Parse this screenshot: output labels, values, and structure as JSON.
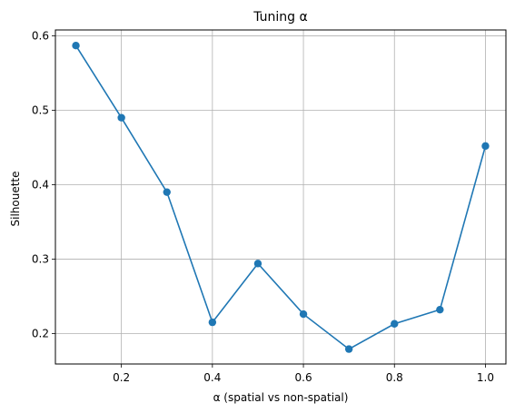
{
  "chart_data": {
    "type": "line",
    "title": "Tuning α",
    "xlabel": "α (spatial vs non-spatial)",
    "ylabel": "Silhouette",
    "x": [
      0.1,
      0.2,
      0.3,
      0.4,
      0.5,
      0.6,
      0.7,
      0.8,
      0.9,
      1.0
    ],
    "series": [
      {
        "values": [
          0.587,
          0.49,
          0.39,
          0.215,
          0.294,
          0.226,
          0.179,
          0.213,
          0.232,
          0.452
        ]
      }
    ],
    "xlim": [
      0.055,
      1.045
    ],
    "ylim": [
      0.159,
      0.608
    ],
    "xticks": [
      0.2,
      0.4,
      0.6,
      0.8,
      1.0
    ],
    "xtick_labels": [
      "0.2",
      "0.4",
      "0.6",
      "0.8",
      "1.0"
    ],
    "yticks": [
      0.2,
      0.3,
      0.4,
      0.5,
      0.6
    ],
    "ytick_labels": [
      "0.2",
      "0.3",
      "0.4",
      "0.5",
      "0.6"
    ],
    "grid": true,
    "color": "#1f77b4"
  }
}
